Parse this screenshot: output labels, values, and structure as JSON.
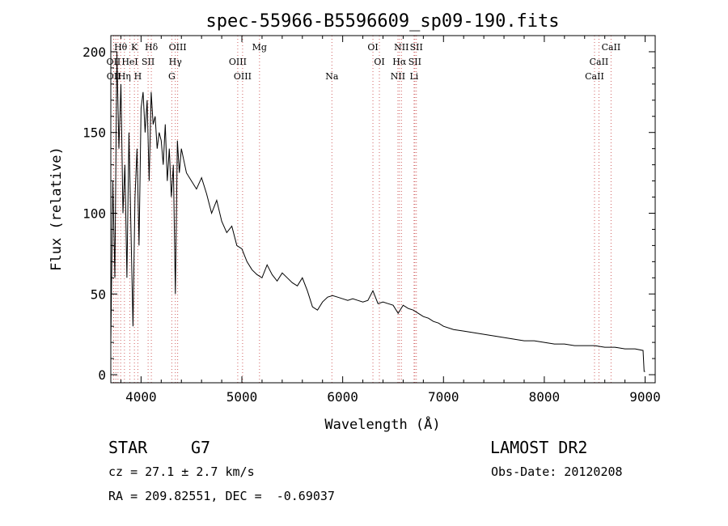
{
  "chart_data": {
    "type": "line",
    "title": "spec-55966-B5596609_sp09-190.fits",
    "xlabel": "Wavelength (Å)",
    "ylabel": "Flux (relative)",
    "xlim": [
      3700,
      9100
    ],
    "ylim": [
      -5,
      210
    ],
    "xticks": [
      4000,
      5000,
      6000,
      7000,
      8000,
      9000
    ],
    "yticks": [
      0,
      50,
      100,
      150,
      200
    ],
    "grid": false,
    "series": [
      {
        "color": "#000000",
        "x": [
          3700,
          3720,
          3740,
          3760,
          3780,
          3800,
          3820,
          3840,
          3860,
          3880,
          3900,
          3920,
          3940,
          3960,
          3980,
          4000,
          4020,
          4040,
          4060,
          4080,
          4100,
          4120,
          4140,
          4160,
          4180,
          4200,
          4220,
          4240,
          4260,
          4280,
          4300,
          4320,
          4340,
          4360,
          4380,
          4400,
          4450,
          4500,
          4550,
          4600,
          4650,
          4700,
          4750,
          4800,
          4850,
          4900,
          4950,
          5000,
          5050,
          5100,
          5150,
          5200,
          5250,
          5300,
          5350,
          5400,
          5450,
          5500,
          5550,
          5600,
          5650,
          5700,
          5750,
          5800,
          5850,
          5900,
          5950,
          6000,
          6050,
          6100,
          6150,
          6200,
          6250,
          6300,
          6350,
          6400,
          6450,
          6500,
          6550,
          6600,
          6650,
          6700,
          6750,
          6800,
          6850,
          6900,
          6950,
          7000,
          7100,
          7200,
          7300,
          7400,
          7500,
          7600,
          7700,
          7800,
          7900,
          8000,
          8100,
          8200,
          8300,
          8400,
          8500,
          8600,
          8700,
          8800,
          8900,
          8980,
          8990,
          9000
        ],
        "values": [
          20,
          120,
          60,
          200,
          140,
          180,
          100,
          130,
          60,
          150,
          90,
          30,
          110,
          140,
          80,
          165,
          175,
          150,
          170,
          120,
          175,
          155,
          160,
          140,
          150,
          145,
          130,
          155,
          120,
          140,
          110,
          130,
          50,
          145,
          125,
          140,
          125,
          120,
          115,
          122,
          112,
          100,
          108,
          95,
          88,
          92,
          80,
          78,
          70,
          65,
          62,
          60,
          68,
          62,
          58,
          63,
          60,
          57,
          55,
          60,
          52,
          42,
          40,
          45,
          48,
          49,
          48,
          47,
          46,
          47,
          46,
          45,
          46,
          52,
          44,
          45,
          44,
          43,
          38,
          43,
          41,
          40,
          38,
          36,
          35,
          33,
          32,
          30,
          28,
          27,
          26,
          25,
          24,
          23,
          22,
          21,
          21,
          20,
          19,
          19,
          18,
          18,
          18,
          17,
          17,
          16,
          16,
          15,
          2,
          2
        ]
      }
    ],
    "line_labels": [
      {
        "label": "Hθ",
        "x": 3798,
        "row": 0
      },
      {
        "label": "K",
        "x": 3934,
        "row": 0
      },
      {
        "label": "Hδ",
        "x": 4102,
        "row": 0
      },
      {
        "label": "OIII",
        "x": 4363,
        "row": 0
      },
      {
        "label": "Mg",
        "x": 5175,
        "row": 0
      },
      {
        "label": "OI",
        "x": 6300,
        "row": 0
      },
      {
        "label": "NII",
        "x": 6583,
        "row": 0
      },
      {
        "label": "SII",
        "x": 6731,
        "row": 0
      },
      {
        "label": "CaII",
        "x": 8662,
        "row": 0
      },
      {
        "label": "OII",
        "x": 3727,
        "row": 1
      },
      {
        "label": "HeI",
        "x": 3889,
        "row": 1
      },
      {
        "label": "SII",
        "x": 4070,
        "row": 1
      },
      {
        "label": "Hγ",
        "x": 4340,
        "row": 1
      },
      {
        "label": "OIII",
        "x": 4959,
        "row": 1
      },
      {
        "label": "OI",
        "x": 6364,
        "row": 1
      },
      {
        "label": "Hα",
        "x": 6563,
        "row": 1
      },
      {
        "label": "SII",
        "x": 6716,
        "row": 1
      },
      {
        "label": "CaII",
        "x": 8542,
        "row": 1
      },
      {
        "label": "OII",
        "x": 3729,
        "row": 2
      },
      {
        "label": "Hη",
        "x": 3835,
        "row": 2
      },
      {
        "label": "H",
        "x": 3968,
        "row": 2
      },
      {
        "label": "G",
        "x": 4305,
        "row": 2
      },
      {
        "label": "OIII",
        "x": 5007,
        "row": 2
      },
      {
        "label": "Na",
        "x": 5893,
        "row": 2
      },
      {
        "label": "NII",
        "x": 6548,
        "row": 2
      },
      {
        "label": "Li",
        "x": 6708,
        "row": 2
      },
      {
        "label": "CaII",
        "x": 8498,
        "row": 2
      }
    ],
    "line_markers": [
      3727,
      3729,
      3750,
      3771,
      3798,
      3835,
      3889,
      3934,
      3968,
      4070,
      4102,
      4305,
      4340,
      4363,
      4959,
      5007,
      5175,
      5893,
      6300,
      6364,
      6548,
      6563,
      6583,
      6708,
      6716,
      6731,
      8498,
      8542,
      8662
    ]
  },
  "info": {
    "class_label": "STAR",
    "subclass": "G7",
    "survey": "LAMOST DR2",
    "cz": "cz = 27.1 ± 2.7 km/s",
    "obs_date": "Obs-Date: 20120208",
    "coords": "RA = 209.82551, DEC =  -0.69037"
  }
}
